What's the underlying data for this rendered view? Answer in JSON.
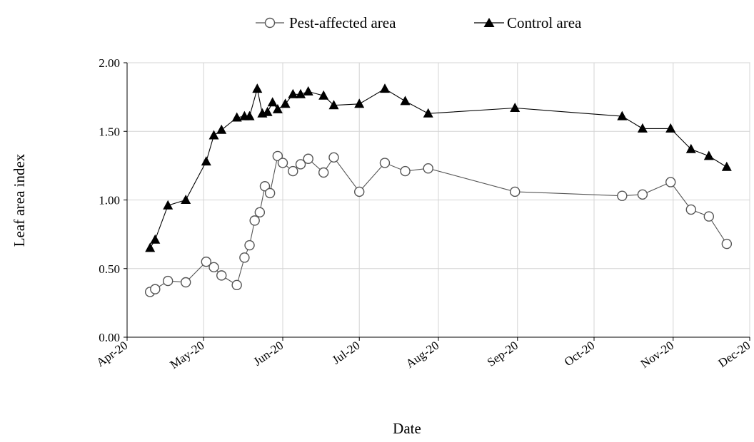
{
  "chart_data": {
    "type": "line",
    "title": "",
    "xlabel": "Date",
    "ylabel": "Leaf area index",
    "ylim": [
      0,
      2
    ],
    "xlim": [
      "2020-04-01",
      "2020-12-01"
    ],
    "grid": "horizontal",
    "legend_position": "top-center",
    "x_ticks": [
      "Apr-20",
      "May-20",
      "Jun-20",
      "Jul-20",
      "Aug-20",
      "Sep-20",
      "Oct-20",
      "Nov-20",
      "Dec-20"
    ],
    "y_ticks": [
      "0.00",
      "0.50",
      "1.00",
      "1.50",
      "2.00"
    ],
    "series": [
      {
        "name": "Pest-affected area",
        "marker": "open-circle",
        "color": "#555555",
        "points": [
          [
            "2020-04-10",
            0.33
          ],
          [
            "2020-04-12",
            0.35
          ],
          [
            "2020-04-17",
            0.41
          ],
          [
            "2020-04-24",
            0.4
          ],
          [
            "2020-05-02",
            0.55
          ],
          [
            "2020-05-05",
            0.51
          ],
          [
            "2020-05-08",
            0.45
          ],
          [
            "2020-05-14",
            0.38
          ],
          [
            "2020-05-17",
            0.58
          ],
          [
            "2020-05-19",
            0.67
          ],
          [
            "2020-05-21",
            0.85
          ],
          [
            "2020-05-23",
            0.91
          ],
          [
            "2020-05-25",
            1.1
          ],
          [
            "2020-05-27",
            1.05
          ],
          [
            "2020-05-30",
            1.32
          ],
          [
            "2020-06-01",
            1.27
          ],
          [
            "2020-06-05",
            1.21
          ],
          [
            "2020-06-08",
            1.26
          ],
          [
            "2020-06-11",
            1.3
          ],
          [
            "2020-06-17",
            1.2
          ],
          [
            "2020-06-21",
            1.31
          ],
          [
            "2020-07-01",
            1.06
          ],
          [
            "2020-07-11",
            1.27
          ],
          [
            "2020-07-19",
            1.21
          ],
          [
            "2020-07-28",
            1.23
          ],
          [
            "2020-08-31",
            1.06
          ],
          [
            "2020-10-12",
            1.03
          ],
          [
            "2020-10-20",
            1.04
          ],
          [
            "2020-10-31",
            1.13
          ],
          [
            "2020-11-08",
            0.93
          ],
          [
            "2020-11-15",
            0.88
          ],
          [
            "2020-11-22",
            0.68
          ]
        ]
      },
      {
        "name": "Control area",
        "marker": "filled-triangle",
        "color": "#000000",
        "points": [
          [
            "2020-04-10",
            0.65
          ],
          [
            "2020-04-12",
            0.71
          ],
          [
            "2020-04-17",
            0.96
          ],
          [
            "2020-04-24",
            1.0
          ],
          [
            "2020-05-02",
            1.28
          ],
          [
            "2020-05-05",
            1.47
          ],
          [
            "2020-05-08",
            1.51
          ],
          [
            "2020-05-14",
            1.6
          ],
          [
            "2020-05-17",
            1.61
          ],
          [
            "2020-05-19",
            1.61
          ],
          [
            "2020-05-22",
            1.81
          ],
          [
            "2020-05-24",
            1.63
          ],
          [
            "2020-05-26",
            1.64
          ],
          [
            "2020-05-28",
            1.71
          ],
          [
            "2020-05-30",
            1.66
          ],
          [
            "2020-06-02",
            1.7
          ],
          [
            "2020-06-05",
            1.77
          ],
          [
            "2020-06-08",
            1.77
          ],
          [
            "2020-06-11",
            1.79
          ],
          [
            "2020-06-17",
            1.76
          ],
          [
            "2020-06-21",
            1.69
          ],
          [
            "2020-07-01",
            1.7
          ],
          [
            "2020-07-11",
            1.81
          ],
          [
            "2020-07-19",
            1.72
          ],
          [
            "2020-07-28",
            1.63
          ],
          [
            "2020-08-31",
            1.67
          ],
          [
            "2020-10-12",
            1.61
          ],
          [
            "2020-10-20",
            1.52
          ],
          [
            "2020-10-31",
            1.52
          ],
          [
            "2020-11-08",
            1.37
          ],
          [
            "2020-11-15",
            1.32
          ],
          [
            "2020-11-22",
            1.24
          ]
        ]
      }
    ]
  }
}
